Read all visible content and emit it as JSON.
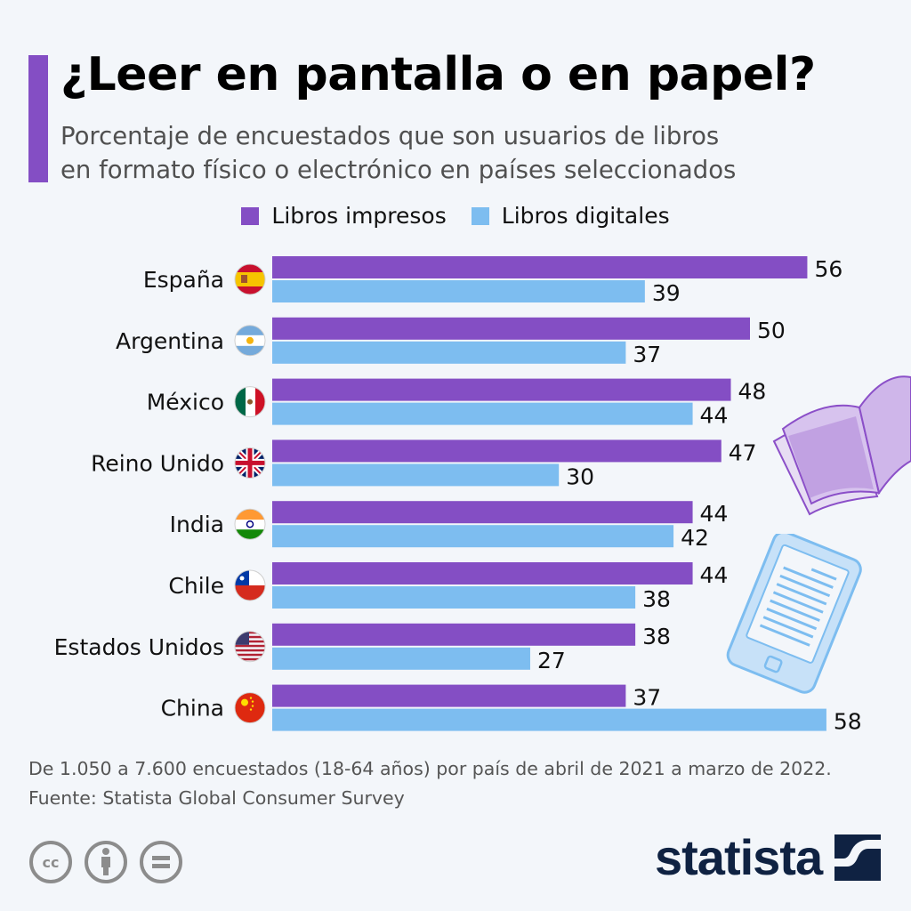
{
  "header": {
    "title": "¿Leer en pantalla o en papel?",
    "subtitle_line1": "Porcentaje de encuestados que son usuarios de libros",
    "subtitle_line2": "en formato físico o electrónico en países seleccionados"
  },
  "colors": {
    "accent": "#844ec4",
    "printed": "#844ec4",
    "digital": "#7dbdf0",
    "brand": "#0f2242"
  },
  "chart_data": {
    "type": "bar",
    "orientation": "horizontal",
    "title": "¿Leer en pantalla o en papel?",
    "subtitle": "Porcentaje de encuestados que son usuarios de libros en formato físico o electrónico en países seleccionados",
    "xlabel": "",
    "ylabel": "",
    "unit": "%",
    "xlim": [
      0,
      58
    ],
    "grid": false,
    "legend_position": "top-center",
    "categories": [
      "España",
      "Argentina",
      "México",
      "Reino Unido",
      "India",
      "Chile",
      "Estados Unidos",
      "China"
    ],
    "flags": [
      "flag-spain-icon",
      "flag-argentina-icon",
      "flag-mexico-icon",
      "flag-uk-icon",
      "flag-india-icon",
      "flag-chile-icon",
      "flag-usa-icon",
      "flag-china-icon"
    ],
    "series": [
      {
        "name": "Libros impresos",
        "color": "#844ec4",
        "values": [
          56,
          50,
          48,
          47,
          44,
          44,
          38,
          37
        ]
      },
      {
        "name": "Libros digitales",
        "color": "#7dbdf0",
        "values": [
          39,
          37,
          44,
          30,
          42,
          38,
          27,
          58
        ]
      }
    ]
  },
  "footer": {
    "note": "De 1.050 a 7.600 encuestados (18-64 años) por país de abril de 2021 a marzo de 2022.",
    "source": "Fuente: Statista Global Consumer Survey",
    "license_icons": [
      "cc-icon",
      "attribution-icon",
      "no-derivatives-icon"
    ],
    "brand": "statista"
  }
}
